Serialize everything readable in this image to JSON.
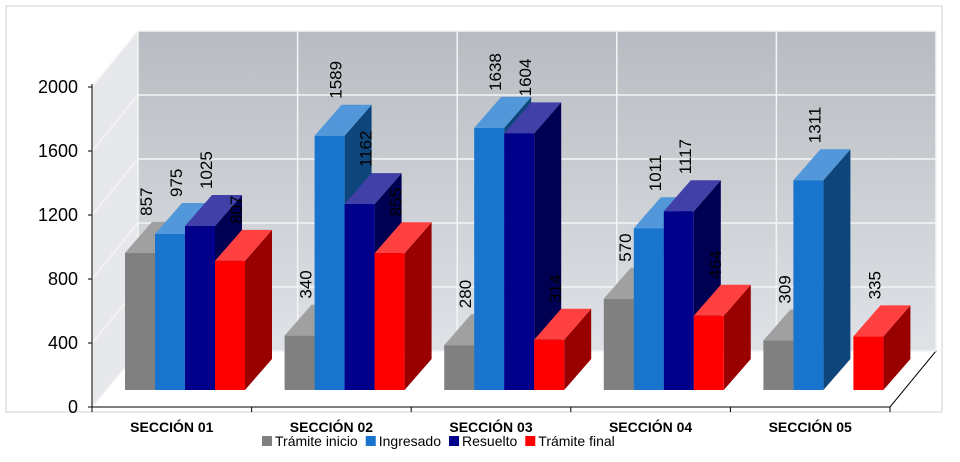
{
  "chart_data": {
    "type": "bar",
    "title": "",
    "xlabel": "",
    "ylabel": "",
    "ylim": [
      0,
      2000
    ],
    "yticks": [
      0,
      400,
      800,
      1200,
      1600,
      2000
    ],
    "grid": true,
    "legend_position": "bottom",
    "categories": [
      "SECCIÓN 01",
      "SECCIÓN 02",
      "SECCIÓN 03",
      "SECCIÓN 04",
      "SECCIÓN 05"
    ],
    "series": [
      {
        "name": "Trámite inicio",
        "color": "#808080",
        "values": [
          857,
          340,
          280,
          570,
          309
        ]
      },
      {
        "name": "Ingresado",
        "color": "#1874CD",
        "values": [
          975,
          1589,
          1638,
          1011,
          1311
        ]
      },
      {
        "name": "Resuelto",
        "color": "#00008B",
        "values": [
          1025,
          1162,
          1604,
          1117,
          null
        ]
      },
      {
        "name": "Trámite final",
        "color": "#FF0000",
        "values": [
          807,
          855,
          314,
          464,
          335
        ]
      }
    ]
  }
}
